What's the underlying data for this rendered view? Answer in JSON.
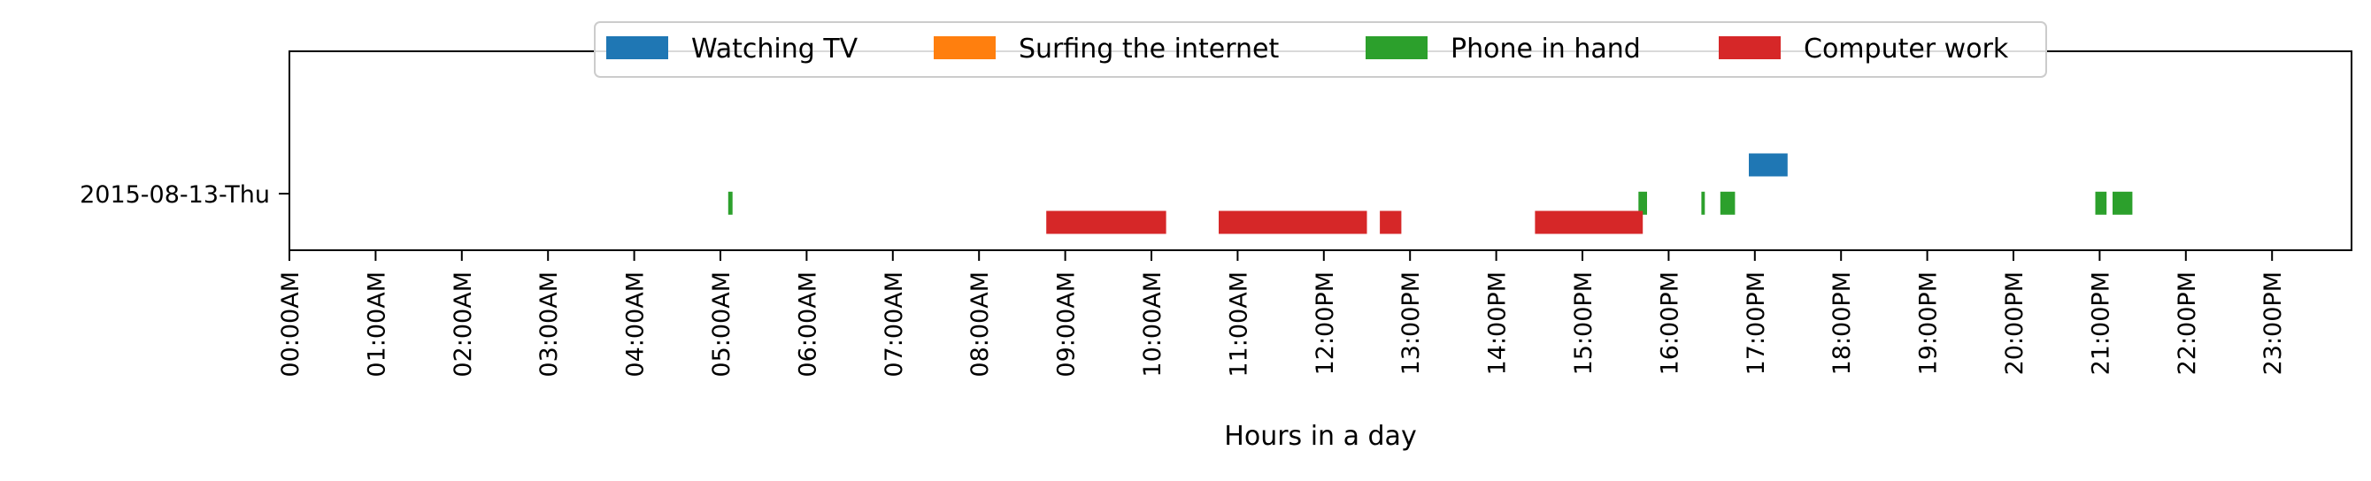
{
  "chart_data": {
    "type": "timeline",
    "xlabel": "Hours in a day",
    "ylabel": "",
    "xlim": [
      0,
      24
    ],
    "x_ticks": [
      0,
      1,
      2,
      3,
      4,
      5,
      6,
      7,
      8,
      9,
      10,
      11,
      12,
      13,
      14,
      15,
      16,
      17,
      18,
      19,
      20,
      21,
      22,
      23
    ],
    "x_tick_labels": [
      "00:00AM",
      "01:00AM",
      "02:00AM",
      "03:00AM",
      "04:00AM",
      "05:00AM",
      "06:00AM",
      "07:00AM",
      "08:00AM",
      "09:00AM",
      "10:00AM",
      "11:00AM",
      "12:00PM",
      "13:00PM",
      "14:00PM",
      "15:00PM",
      "16:00PM",
      "17:00PM",
      "18:00PM",
      "19:00PM",
      "20:00PM",
      "21:00PM",
      "22:00PM",
      "23:00PM"
    ],
    "categories": [
      "2015-08-13-Thu"
    ],
    "legend": {
      "placement": "top-center",
      "entries": [
        "Watching TV",
        "Surfing the internet",
        "Phone in hand",
        "Computer work"
      ]
    },
    "series": [
      {
        "name": "Watching TV",
        "color": "#1f77b4",
        "lane_offset": -0.25,
        "intervals": [
          {
            "category": "2015-08-13-Thu",
            "start": 16.93,
            "end": 17.38
          }
        ]
      },
      {
        "name": "Surfing the internet",
        "color": "#ff7f0e",
        "lane_offset": -0.083,
        "intervals": []
      },
      {
        "name": "Phone in hand",
        "color": "#2ca02c",
        "lane_offset": 0.083,
        "intervals": [
          {
            "category": "2015-08-13-Thu",
            "start": 5.09,
            "end": 5.14
          },
          {
            "category": "2015-08-13-Thu",
            "start": 15.65,
            "end": 15.75
          },
          {
            "category": "2015-08-13-Thu",
            "start": 16.38,
            "end": 16.42
          },
          {
            "category": "2015-08-13-Thu",
            "start": 16.6,
            "end": 16.77
          },
          {
            "category": "2015-08-13-Thu",
            "start": 20.95,
            "end": 21.08
          },
          {
            "category": "2015-08-13-Thu",
            "start": 21.15,
            "end": 21.38
          }
        ]
      },
      {
        "name": "Computer work",
        "color": "#d62728",
        "lane_offset": 0.25,
        "intervals": [
          {
            "category": "2015-08-13-Thu",
            "start": 8.78,
            "end": 10.17
          },
          {
            "category": "2015-08-13-Thu",
            "start": 10.78,
            "end": 12.5
          },
          {
            "category": "2015-08-13-Thu",
            "start": 12.65,
            "end": 12.9
          },
          {
            "category": "2015-08-13-Thu",
            "start": 14.45,
            "end": 15.7
          }
        ]
      }
    ]
  }
}
